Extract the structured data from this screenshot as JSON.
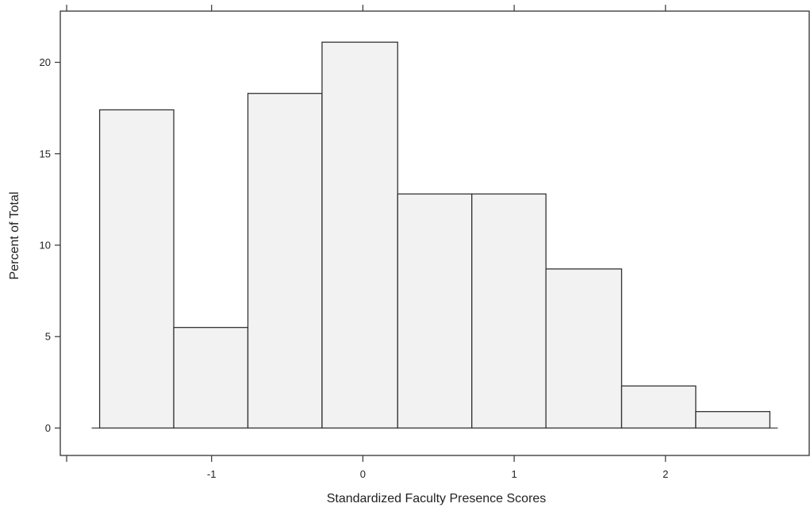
{
  "chart_data": {
    "type": "bar",
    "histogram": true,
    "bin_edges": [
      -1.74,
      -1.25,
      -0.76,
      -0.27,
      0.23,
      0.72,
      1.21,
      1.71,
      2.2,
      2.69
    ],
    "values": [
      17.4,
      5.5,
      18.3,
      21.1,
      12.8,
      12.8,
      8.7,
      2.3,
      0.9
    ],
    "title": "",
    "xlabel": "Standardized Faculty Presence Scores",
    "ylabel": "Percent of Total",
    "xlim": [
      -2.0,
      2.95
    ],
    "ylim": [
      -1.5,
      22.8
    ],
    "x_ticks": [
      -1,
      0,
      1,
      2
    ],
    "x_tick_labels": [
      "-1",
      "0",
      "1",
      "2"
    ],
    "y_ticks": [
      0,
      5,
      10,
      15,
      20
    ],
    "y_tick_labels": [
      "0",
      "5",
      "10",
      "15",
      "20"
    ],
    "grid": false,
    "legend": "none",
    "colors": {
      "bar_fill": "#f2f2f2",
      "bar_stroke": "#333333",
      "axis": "#333333"
    }
  }
}
